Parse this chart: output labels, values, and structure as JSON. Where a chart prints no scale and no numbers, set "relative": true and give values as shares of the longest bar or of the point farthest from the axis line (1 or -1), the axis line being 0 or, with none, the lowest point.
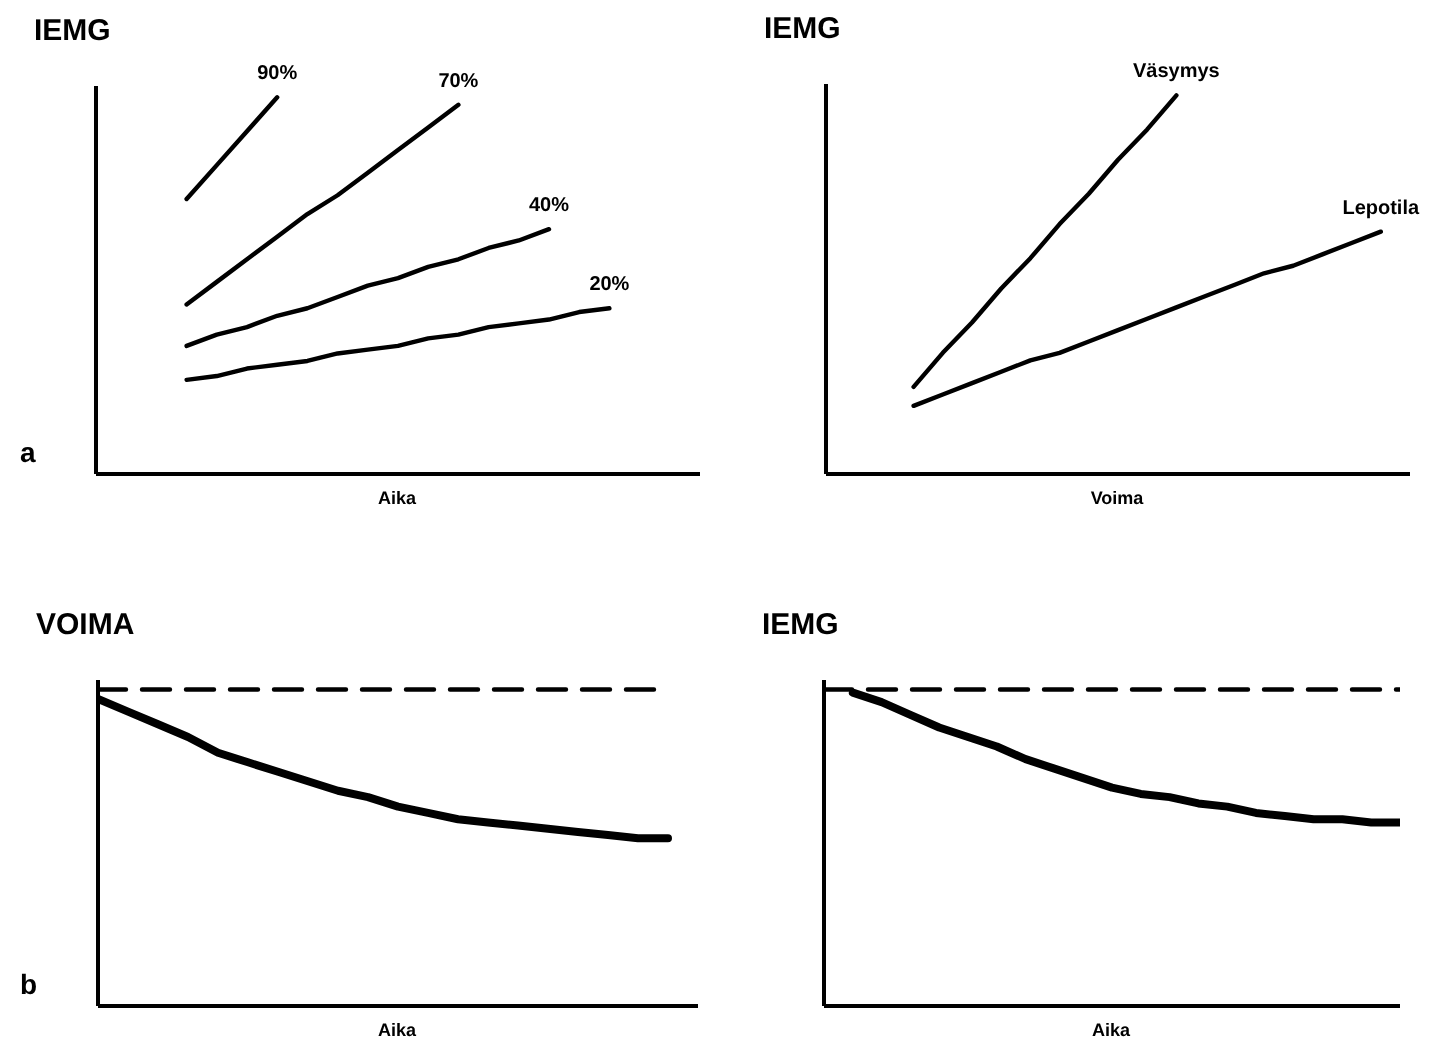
{
  "chart_data": [
    {
      "type": "line",
      "relative": true,
      "ylabel": "IEMG",
      "xlabel": "Aika",
      "annotations": [
        "a"
      ],
      "categories": [
        null,
        null,
        null,
        null,
        null,
        null,
        null,
        null,
        null,
        null,
        null,
        null,
        null,
        null,
        null,
        null,
        null,
        null,
        null,
        null,
        null
      ],
      "series": [
        {
          "name": "90%",
          "color": "#000000",
          "values": [
            null,
            null,
            null,
            0.73,
            0.82,
            0.91,
            1.0,
            null,
            null,
            null,
            null,
            null,
            null,
            null,
            null,
            null,
            null,
            null,
            null,
            null,
            null
          ]
        },
        {
          "name": "70%",
          "color": "#000000",
          "values": [
            null,
            null,
            null,
            0.45,
            0.51,
            0.57,
            0.63,
            0.69,
            0.74,
            0.8,
            0.86,
            0.92,
            0.98,
            null,
            null,
            null,
            null,
            null,
            null,
            null,
            null
          ]
        },
        {
          "name": "40%",
          "color": "#000000",
          "values": [
            null,
            null,
            null,
            0.34,
            0.37,
            0.39,
            0.42,
            0.44,
            0.47,
            0.5,
            0.52,
            0.55,
            0.57,
            0.6,
            0.62,
            0.65,
            null,
            null,
            null,
            null,
            null
          ]
        },
        {
          "name": "20%",
          "color": "#000000",
          "values": [
            null,
            null,
            null,
            0.25,
            0.26,
            0.28,
            0.29,
            0.3,
            0.32,
            0.33,
            0.34,
            0.36,
            0.37,
            0.39,
            0.4,
            0.41,
            0.43,
            0.44,
            null,
            null,
            null
          ]
        }
      ]
    },
    {
      "type": "line",
      "relative": true,
      "ylabel": "IEMG",
      "xlabel": "Voima",
      "categories": [
        null,
        null,
        null,
        null,
        null,
        null,
        null,
        null,
        null,
        null,
        null,
        null,
        null,
        null,
        null,
        null,
        null,
        null,
        null,
        null,
        null
      ],
      "series": [
        {
          "name": "Väsymys",
          "color": "#000000",
          "values": [
            null,
            null,
            null,
            0.23,
            0.32,
            0.4,
            0.49,
            0.57,
            0.66,
            0.74,
            0.83,
            0.91,
            1.0,
            null,
            null,
            null,
            null,
            null,
            null,
            null,
            null
          ]
        },
        {
          "name": "Lepotila",
          "color": "#000000",
          "values": [
            null,
            null,
            null,
            0.18,
            0.21,
            0.24,
            0.27,
            0.3,
            0.32,
            0.35,
            0.38,
            0.41,
            0.44,
            0.47,
            0.5,
            0.53,
            0.55,
            0.58,
            0.61,
            0.64,
            null
          ]
        }
      ]
    },
    {
      "type": "line",
      "relative": true,
      "ylabel": "VOIMA",
      "xlabel": "Aika",
      "annotations": [
        "b"
      ],
      "categories": [
        null,
        null,
        null,
        null,
        null,
        null,
        null,
        null,
        null,
        null,
        null,
        null,
        null,
        null,
        null,
        null,
        null,
        null,
        null,
        null,
        null
      ],
      "series": [
        {
          "color": "#000000",
          "line_style": "dashed",
          "values": [
            1,
            1,
            1,
            1,
            1,
            1,
            1,
            1,
            1,
            1,
            1,
            1,
            1,
            1,
            1,
            1,
            1,
            1,
            1,
            1,
            null
          ]
        },
        {
          "color": "#000000",
          "values": [
            0.97,
            0.93,
            0.89,
            0.85,
            0.8,
            0.77,
            0.74,
            0.71,
            0.68,
            0.66,
            0.63,
            0.61,
            0.59,
            0.58,
            0.57,
            0.56,
            0.55,
            0.54,
            0.53,
            0.53,
            null
          ]
        }
      ]
    },
    {
      "type": "line",
      "relative": true,
      "ylabel": "IEMG",
      "xlabel": "Aika",
      "categories": [
        null,
        null,
        null,
        null,
        null,
        null,
        null,
        null,
        null,
        null,
        null,
        null,
        null,
        null,
        null,
        null,
        null,
        null,
        null,
        null,
        null
      ],
      "series": [
        {
          "color": "#000000",
          "line_style": "dashed",
          "values": [
            1,
            1,
            1,
            1,
            1,
            1,
            1,
            1,
            1,
            1,
            1,
            1,
            1,
            1,
            1,
            1,
            1,
            1,
            1,
            1,
            1
          ]
        },
        {
          "color": "#000000",
          "values": [
            null,
            0.99,
            0.96,
            0.92,
            0.88,
            0.85,
            0.82,
            0.78,
            0.75,
            0.72,
            0.69,
            0.67,
            0.66,
            0.64,
            0.63,
            0.61,
            0.6,
            0.59,
            0.59,
            0.58,
            0.58
          ]
        }
      ]
    }
  ]
}
